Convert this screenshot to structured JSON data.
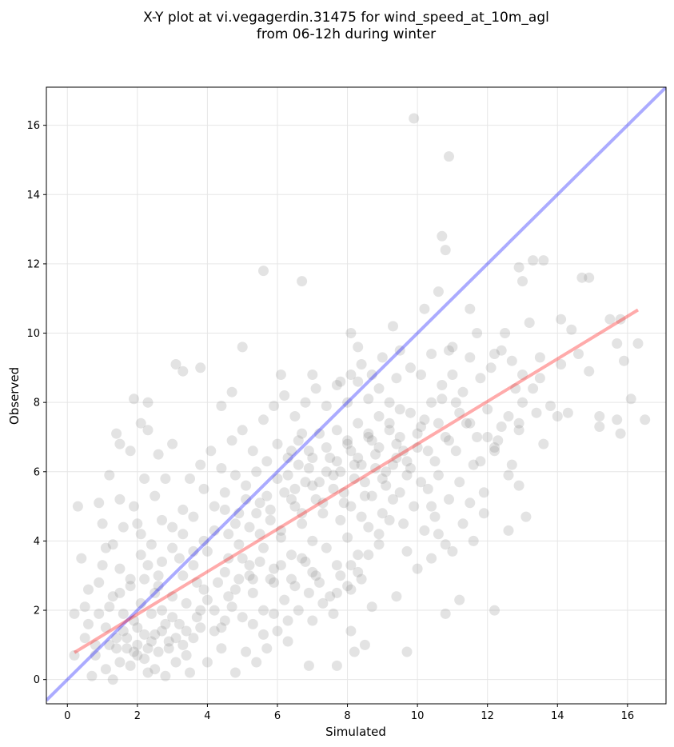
{
  "chart_data": {
    "type": "scatter",
    "title": [
      "X-Y plot at vi.vegagerdin.31475 for wind_speed_at_10m_agl",
      "from 06-12h during winter"
    ],
    "xlabel": "Simulated",
    "ylabel": "Observed",
    "xlim": [
      -0.6,
      17.1
    ],
    "ylim": [
      -0.7,
      17.1
    ],
    "xticks": [
      0,
      2,
      4,
      6,
      8,
      10,
      12,
      14,
      16
    ],
    "yticks": [
      0,
      2,
      4,
      6,
      8,
      10,
      12,
      14,
      16
    ],
    "grid": true,
    "colors": {
      "points": "#808080",
      "identity_line": "#0000ff",
      "fit_line": "#ff0000"
    },
    "lines": [
      {
        "role": "identity",
        "x": [
          -0.6,
          17.1
        ],
        "y": [
          -0.6,
          17.1
        ]
      },
      {
        "role": "fit",
        "x": [
          0.2,
          16.3
        ],
        "y": [
          0.78,
          10.67
        ]
      }
    ],
    "points": [
      [
        9.9,
        16.2
      ],
      [
        10.9,
        15.1
      ],
      [
        5.6,
        11.8
      ],
      [
        6.7,
        11.5
      ],
      [
        10.7,
        12.8
      ],
      [
        10.8,
        12.4
      ],
      [
        13.3,
        12.1
      ],
      [
        13.6,
        12.1
      ],
      [
        12.9,
        11.9
      ],
      [
        13.0,
        11.5
      ],
      [
        14.7,
        11.6
      ],
      [
        14.9,
        11.6
      ],
      [
        10.2,
        10.7
      ],
      [
        11.5,
        10.7
      ],
      [
        14.1,
        10.4
      ],
      [
        15.5,
        10.4
      ],
      [
        15.8,
        10.4
      ],
      [
        14.4,
        10.1
      ],
      [
        13.2,
        10.3
      ],
      [
        12.5,
        10.0
      ],
      [
        11.7,
        10.0
      ],
      [
        9.3,
        10.2
      ],
      [
        8.1,
        10.0
      ],
      [
        10.6,
        11.2
      ],
      [
        16.3,
        9.7
      ],
      [
        15.7,
        9.7
      ],
      [
        15.9,
        9.2
      ],
      [
        14.9,
        8.9
      ],
      [
        14.6,
        9.4
      ],
      [
        14.1,
        9.1
      ],
      [
        13.5,
        9.3
      ],
      [
        12.4,
        9.5
      ],
      [
        12.2,
        9.4
      ],
      [
        10.9,
        9.5
      ],
      [
        9.5,
        9.5
      ],
      [
        8.3,
        9.6
      ],
      [
        5.0,
        9.6
      ],
      [
        3.1,
        9.1
      ],
      [
        3.3,
        8.9
      ],
      [
        3.8,
        9.0
      ],
      [
        6.1,
        8.8
      ],
      [
        7.0,
        8.8
      ],
      [
        7.8,
        8.6
      ],
      [
        10.1,
        8.8
      ],
      [
        11.0,
        8.8
      ],
      [
        11.8,
        8.7
      ],
      [
        13.0,
        8.8
      ],
      [
        13.5,
        8.7
      ],
      [
        15.2,
        7.6
      ],
      [
        15.2,
        7.3
      ],
      [
        15.7,
        7.5
      ],
      [
        15.8,
        7.1
      ],
      [
        16.1,
        8.1
      ],
      [
        16.5,
        7.5
      ],
      [
        14.3,
        7.7
      ],
      [
        13.8,
        7.9
      ],
      [
        13.6,
        6.8
      ],
      [
        12.9,
        7.4
      ],
      [
        12.2,
        6.6
      ],
      [
        12.7,
        6.2
      ],
      [
        13.1,
        4.7
      ],
      [
        12.6,
        4.3
      ],
      [
        12.2,
        2.0
      ],
      [
        11.2,
        2.3
      ],
      [
        10.8,
        1.9
      ],
      [
        9.7,
        0.8
      ],
      [
        7.7,
        0.4
      ],
      [
        6.9,
        0.4
      ],
      [
        1.9,
        8.1
      ],
      [
        2.3,
        8.0
      ],
      [
        2.6,
        6.5
      ],
      [
        1.8,
        6.6
      ],
      [
        1.4,
        7.1
      ],
      [
        2.1,
        7.4
      ],
      [
        2.3,
        7.2
      ],
      [
        1.5,
        6.8
      ],
      [
        1.2,
        5.9
      ],
      [
        1.5,
        5.2
      ],
      [
        0.3,
        5.0
      ],
      [
        0.9,
        5.1
      ],
      [
        1.0,
        4.5
      ],
      [
        0.4,
        3.5
      ],
      [
        2.0,
        4.5
      ],
      [
        4.7,
        8.3
      ],
      [
        4.4,
        7.9
      ],
      [
        0.2,
        1.9
      ],
      [
        0.5,
        2.1
      ],
      [
        0.6,
        1.6
      ],
      [
        0.9,
        2.8
      ],
      [
        0.5,
        1.2
      ],
      [
        0.8,
        0.7
      ],
      [
        0.7,
        0.1
      ],
      [
        1.1,
        0.3
      ],
      [
        1.3,
        0.0
      ],
      [
        0.2,
        0.7
      ],
      [
        0.6,
        2.6
      ],
      [
        1.1,
        3.8
      ],
      [
        1.3,
        2.4
      ],
      [
        1.5,
        3.2
      ],
      [
        1.8,
        2.9
      ],
      [
        2.1,
        3.6
      ],
      [
        1.4,
        0.9
      ],
      [
        1.7,
        1.2
      ],
      [
        1.9,
        0.8
      ],
      [
        2.0,
        1.5
      ],
      [
        2.2,
        0.6
      ],
      [
        2.4,
        1.1
      ],
      [
        2.5,
        0.3
      ],
      [
        2.7,
        1.4
      ],
      [
        2.9,
        0.9
      ],
      [
        3.1,
        0.5
      ],
      [
        3.2,
        1.6
      ],
      [
        3.4,
        0.7
      ],
      [
        3.6,
        1.2
      ],
      [
        3.8,
        2.0
      ],
      [
        1.6,
        1.9
      ],
      [
        2.1,
        2.2
      ],
      [
        2.6,
        2.7
      ],
      [
        3.0,
        2.4
      ],
      [
        3.3,
        3.0
      ],
      [
        3.7,
        2.8
      ],
      [
        4.0,
        2.3
      ],
      [
        4.2,
        1.4
      ],
      [
        4.4,
        0.9
      ],
      [
        4.0,
        0.5
      ],
      [
        2.8,
        0.1
      ],
      [
        3.5,
        0.2
      ],
      [
        1.8,
        0.4
      ],
      [
        2.3,
        0.2
      ],
      [
        1.2,
        1.0
      ],
      [
        1.5,
        0.5
      ],
      [
        1.9,
        1.7
      ],
      [
        2.4,
        1.9
      ],
      [
        2.7,
        2.0
      ],
      [
        3.0,
        1.8
      ],
      [
        3.4,
        2.2
      ],
      [
        3.8,
        1.5
      ],
      [
        2.2,
        1.3
      ],
      [
        2.9,
        1.1
      ],
      [
        1.6,
        1.4
      ],
      [
        2.0,
        1.0
      ],
      [
        2.6,
        0.8
      ],
      [
        3.3,
        1.0
      ],
      [
        4.5,
        3.1
      ],
      [
        4.8,
        2.6
      ],
      [
        5.0,
        3.5
      ],
      [
        5.3,
        2.9
      ],
      [
        5.6,
        3.8
      ],
      [
        5.9,
        3.2
      ],
      [
        6.1,
        4.1
      ],
      [
        6.4,
        3.6
      ],
      [
        6.7,
        4.5
      ],
      [
        7.0,
        4.0
      ],
      [
        4.6,
        4.2
      ],
      [
        4.9,
        4.8
      ],
      [
        5.2,
        4.4
      ],
      [
        5.5,
        5.1
      ],
      [
        5.8,
        4.6
      ],
      [
        6.2,
        5.4
      ],
      [
        6.5,
        5.0
      ],
      [
        6.8,
        5.7
      ],
      [
        7.1,
        5.2
      ],
      [
        7.4,
        6.0
      ],
      [
        7.3,
        4.8
      ],
      [
        7.6,
        5.5
      ],
      [
        7.9,
        5.1
      ],
      [
        8.2,
        5.8
      ],
      [
        8.5,
        5.3
      ],
      [
        8.8,
        6.1
      ],
      [
        9.1,
        5.6
      ],
      [
        9.4,
        6.4
      ],
      [
        9.7,
        5.9
      ],
      [
        10.0,
        6.7
      ],
      [
        7.7,
        6.3
      ],
      [
        8.0,
        6.8
      ],
      [
        8.3,
        6.4
      ],
      [
        8.6,
        7.1
      ],
      [
        8.9,
        6.7
      ],
      [
        9.2,
        7.4
      ],
      [
        9.5,
        7.0
      ],
      [
        9.8,
        7.7
      ],
      [
        10.1,
        7.3
      ],
      [
        10.4,
        8.0
      ],
      [
        6.9,
        6.6
      ],
      [
        7.2,
        7.1
      ],
      [
        6.6,
        6.9
      ],
      [
        6.3,
        6.4
      ],
      [
        6.0,
        6.8
      ],
      [
        5.7,
        6.3
      ],
      [
        5.4,
        6.0
      ],
      [
        5.1,
        5.6
      ],
      [
        4.8,
        5.9
      ],
      [
        4.5,
        5.4
      ],
      [
        4.2,
        5.0
      ],
      [
        3.9,
        5.5
      ],
      [
        3.6,
        4.7
      ],
      [
        3.3,
        4.9
      ],
      [
        3.0,
        4.4
      ],
      [
        2.7,
        4.6
      ],
      [
        2.4,
        3.9
      ],
      [
        2.1,
        4.2
      ],
      [
        10.5,
        6.3
      ],
      [
        10.8,
        7.0
      ],
      [
        11.1,
        6.6
      ],
      [
        11.4,
        7.4
      ],
      [
        11.7,
        7.0
      ],
      [
        12.0,
        7.8
      ],
      [
        10.3,
        5.5
      ],
      [
        10.6,
        5.9
      ],
      [
        10.9,
        5.2
      ],
      [
        11.2,
        5.7
      ],
      [
        11.6,
        6.2
      ],
      [
        11.9,
        5.4
      ],
      [
        12.3,
        6.9
      ],
      [
        12.6,
        7.6
      ],
      [
        13.0,
        8.0
      ],
      [
        12.8,
        8.4
      ],
      [
        11.3,
        8.3
      ],
      [
        10.7,
        8.1
      ],
      [
        10.2,
        7.5
      ],
      [
        9.0,
        4.8
      ],
      [
        9.3,
        5.2
      ],
      [
        9.6,
        4.5
      ],
      [
        9.9,
        5.0
      ],
      [
        10.2,
        4.3
      ],
      [
        10.5,
        4.7
      ],
      [
        10.8,
        3.9
      ],
      [
        10.4,
        3.5
      ],
      [
        10.0,
        3.2
      ],
      [
        9.7,
        3.7
      ],
      [
        9.4,
        2.4
      ],
      [
        8.9,
        3.9
      ],
      [
        8.6,
        4.4
      ],
      [
        8.3,
        3.6
      ],
      [
        8.0,
        4.1
      ],
      [
        7.7,
        3.3
      ],
      [
        7.4,
        3.8
      ],
      [
        7.1,
        3.0
      ],
      [
        6.8,
        3.4
      ],
      [
        6.5,
        2.7
      ],
      [
        6.2,
        2.3
      ],
      [
        5.9,
        2.8
      ],
      [
        5.6,
        2.0
      ],
      [
        5.3,
        2.5
      ],
      [
        5.0,
        1.8
      ],
      [
        4.7,
        2.1
      ],
      [
        4.4,
        1.5
      ],
      [
        6.0,
        1.4
      ],
      [
        6.3,
        1.1
      ],
      [
        5.7,
        0.9
      ],
      [
        5.4,
        0.5
      ],
      [
        5.1,
        0.8
      ],
      [
        4.8,
        0.2
      ],
      [
        7.0,
        1.7
      ],
      [
        7.3,
        2.2
      ],
      [
        7.6,
        1.9
      ],
      [
        8.1,
        2.6
      ],
      [
        8.4,
        2.9
      ],
      [
        8.7,
        2.1
      ],
      [
        8.1,
        1.4
      ],
      [
        8.5,
        1.0
      ],
      [
        8.2,
        0.8
      ],
      [
        3.5,
        5.8
      ],
      [
        3.8,
        6.2
      ],
      [
        4.1,
        6.6
      ],
      [
        4.4,
        6.1
      ],
      [
        4.7,
        6.9
      ],
      [
        5.0,
        7.2
      ],
      [
        5.3,
        6.6
      ],
      [
        5.6,
        7.5
      ],
      [
        5.9,
        7.9
      ],
      [
        6.2,
        8.2
      ],
      [
        6.5,
        7.6
      ],
      [
        6.8,
        8.0
      ],
      [
        7.1,
        8.4
      ],
      [
        7.4,
        7.9
      ],
      [
        7.7,
        8.5
      ],
      [
        8.0,
        8.0
      ],
      [
        8.3,
        8.6
      ],
      [
        8.6,
        8.1
      ],
      [
        8.9,
        8.4
      ],
      [
        9.2,
        8.0
      ],
      [
        3.0,
        6.8
      ],
      [
        2.8,
        5.8
      ],
      [
        2.5,
        5.3
      ],
      [
        2.2,
        5.8
      ],
      [
        1.9,
        5.0
      ],
      [
        1.6,
        4.4
      ],
      [
        1.3,
        3.9
      ],
      [
        1.0,
        3.3
      ],
      [
        2.3,
        3.3
      ],
      [
        2.6,
        3.0
      ],
      [
        3.2,
        3.5
      ],
      [
        3.6,
        3.3
      ],
      [
        4.0,
        3.7
      ],
      [
        4.3,
        2.8
      ],
      [
        4.6,
        3.5
      ],
      [
        4.9,
        3.9
      ],
      [
        5.2,
        3.3
      ],
      [
        5.5,
        4.2
      ],
      [
        5.8,
        4.9
      ],
      [
        6.1,
        4.3
      ],
      [
        6.4,
        5.2
      ],
      [
        6.7,
        4.8
      ],
      [
        7.0,
        5.6
      ],
      [
        7.3,
        5.1
      ],
      [
        7.6,
        5.9
      ],
      [
        7.9,
        5.4
      ],
      [
        8.2,
        6.2
      ],
      [
        8.5,
        5.7
      ],
      [
        8.8,
        6.5
      ],
      [
        9.1,
        6.0
      ],
      [
        9.4,
        6.8
      ],
      [
        9.7,
        6.3
      ],
      [
        10.0,
        7.1
      ],
      [
        10.3,
        6.6
      ],
      [
        10.6,
        7.4
      ],
      [
        10.9,
        6.9
      ],
      [
        11.2,
        7.7
      ],
      [
        6.5,
        5.5
      ],
      [
        6.9,
        6.1
      ],
      [
        7.2,
        5.7
      ],
      [
        7.5,
        6.4
      ],
      [
        7.8,
        6.0
      ],
      [
        8.1,
        6.6
      ],
      [
        8.4,
        6.2
      ],
      [
        8.7,
        6.9
      ],
      [
        6.0,
        5.8
      ],
      [
        5.7,
        5.3
      ],
      [
        5.4,
        4.8
      ],
      [
        5.1,
        5.2
      ],
      [
        4.8,
        4.5
      ],
      [
        4.5,
        4.9
      ],
      [
        4.2,
        4.3
      ],
      [
        3.9,
        4.0
      ],
      [
        3.6,
        3.7
      ],
      [
        3.3,
        4.2
      ],
      [
        3.0,
        3.8
      ],
      [
        2.7,
        3.4
      ],
      [
        7.4,
        6.7
      ],
      [
        7.7,
        7.2
      ],
      [
        8.0,
        6.9
      ],
      [
        8.3,
        7.4
      ],
      [
        8.6,
        7.0
      ],
      [
        8.9,
        7.6
      ],
      [
        9.2,
        7.2
      ],
      [
        9.5,
        7.8
      ],
      [
        6.6,
        6.2
      ],
      [
        6.3,
        5.9
      ],
      [
        7.0,
        6.4
      ],
      [
        6.7,
        7.1
      ],
      [
        6.4,
        6.6
      ],
      [
        7.8,
        4.6
      ],
      [
        8.1,
        5.0
      ],
      [
        8.4,
        4.7
      ],
      [
        8.7,
        5.3
      ],
      [
        9.0,
        5.8
      ],
      [
        9.3,
        6.2
      ],
      [
        9.6,
        6.6
      ],
      [
        5.2,
        3.0
      ],
      [
        5.5,
        3.4
      ],
      [
        5.8,
        2.9
      ],
      [
        6.1,
        3.3
      ],
      [
        6.4,
        2.9
      ],
      [
        6.7,
        3.5
      ],
      [
        7.0,
        3.1
      ],
      [
        4.6,
        2.4
      ],
      [
        4.9,
        2.9
      ],
      [
        5.3,
        1.6
      ],
      [
        5.6,
        1.3
      ],
      [
        5.9,
        1.9
      ],
      [
        6.3,
        1.7
      ],
      [
        6.6,
        2.0
      ],
      [
        6.9,
        2.5
      ],
      [
        7.2,
        2.8
      ],
      [
        7.5,
        2.4
      ],
      [
        7.8,
        3.0
      ],
      [
        8.1,
        3.3
      ],
      [
        3.9,
        2.6
      ],
      [
        4.2,
        2.0
      ],
      [
        4.5,
        1.7
      ],
      [
        3.7,
        1.8
      ],
      [
        3.4,
        1.4
      ],
      [
        3.1,
        1.2
      ],
      [
        2.8,
        1.6
      ],
      [
        2.5,
        1.3
      ],
      [
        2.3,
        0.9
      ],
      [
        2.0,
        0.7
      ],
      [
        1.7,
        0.9
      ],
      [
        1.4,
        1.2
      ],
      [
        1.1,
        1.5
      ],
      [
        0.8,
        1.0
      ],
      [
        0.9,
        1.9
      ],
      [
        1.2,
        2.1
      ],
      [
        1.5,
        2.5
      ],
      [
        1.8,
        2.7
      ],
      [
        2.2,
        2.9
      ],
      [
        2.5,
        2.5
      ],
      [
        11.5,
        9.3
      ],
      [
        12.1,
        9.0
      ],
      [
        12.7,
        9.2
      ],
      [
        13.3,
        8.4
      ],
      [
        14.0,
        7.6
      ],
      [
        11.0,
        9.6
      ],
      [
        10.4,
        9.4
      ],
      [
        9.8,
        9.0
      ],
      [
        9.4,
        8.7
      ],
      [
        9.0,
        9.3
      ],
      [
        8.7,
        8.8
      ],
      [
        8.4,
        9.1
      ],
      [
        8.1,
        8.8
      ],
      [
        10.7,
        8.5
      ],
      [
        11.1,
        8.0
      ],
      [
        11.5,
        7.4
      ],
      [
        12.0,
        7.0
      ],
      [
        12.4,
        7.3
      ],
      [
        12.9,
        7.2
      ],
      [
        13.4,
        7.7
      ],
      [
        11.8,
        6.3
      ],
      [
        12.2,
        6.7
      ],
      [
        12.6,
        5.9
      ],
      [
        12.9,
        5.6
      ],
      [
        11.5,
        5.1
      ],
      [
        11.9,
        4.8
      ],
      [
        11.3,
        4.5
      ],
      [
        11.6,
        4.0
      ],
      [
        11.0,
        3.7
      ],
      [
        10.6,
        4.2
      ],
      [
        10.4,
        5.0
      ],
      [
        10.1,
        5.7
      ],
      [
        9.8,
        6.1
      ],
      [
        9.5,
        5.4
      ],
      [
        9.2,
        4.6
      ],
      [
        8.9,
        4.2
      ],
      [
        8.6,
        3.6
      ],
      [
        8.3,
        3.1
      ],
      [
        8.0,
        2.7
      ],
      [
        7.7,
        2.5
      ]
    ]
  }
}
